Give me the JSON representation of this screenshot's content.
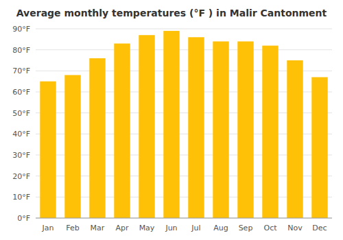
{
  "chart_data": {
    "type": "bar",
    "title": "Average monthly temperatures (°F ) in Malir Cantonment",
    "categories": [
      "Jan",
      "Feb",
      "Mar",
      "Apr",
      "May",
      "Jun",
      "Jul",
      "Aug",
      "Sep",
      "Oct",
      "Nov",
      "Dec"
    ],
    "values": [
      65,
      68,
      76,
      83,
      87,
      89,
      86,
      84,
      84,
      82,
      75,
      67
    ],
    "color": "#FFC107",
    "ylim": [
      0,
      90
    ],
    "yticks": [
      {
        "value": 0,
        "label": "0°F"
      },
      {
        "value": 10,
        "label": "10°F"
      },
      {
        "value": 20,
        "label": "20°F"
      },
      {
        "value": 30,
        "label": "30°F"
      },
      {
        "value": 40,
        "label": "40°F"
      },
      {
        "value": 50,
        "label": "50°F"
      },
      {
        "value": 60,
        "label": "60°F"
      },
      {
        "value": 70,
        "label": "70°F"
      },
      {
        "value": 80,
        "label": "80°F"
      },
      {
        "value": 90,
        "label": "90°F"
      }
    ],
    "grid": true
  }
}
